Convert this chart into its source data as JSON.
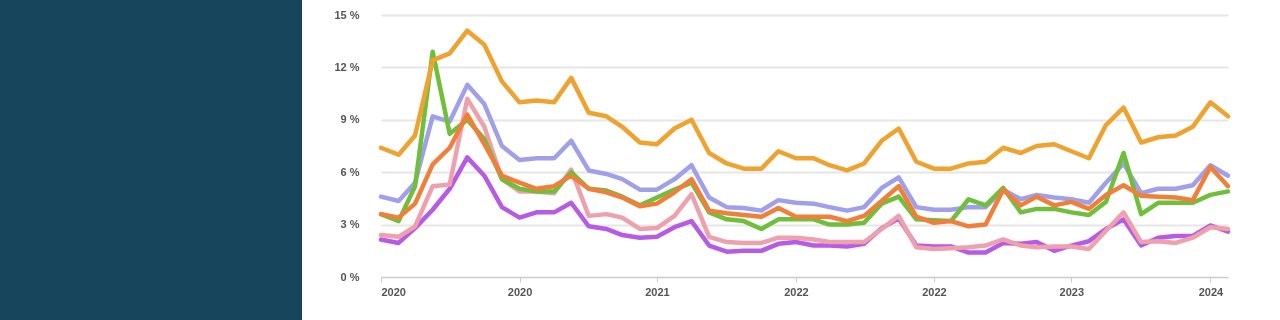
{
  "chart_data": {
    "type": "line",
    "x": [
      "2020-01",
      "2020-02",
      "2020-03",
      "2020-04",
      "2020-05",
      "2020-06",
      "2020-07",
      "2020-08",
      "2020-09",
      "2020-10",
      "2020-11",
      "2020-12",
      "2021-01",
      "2021-02",
      "2021-03",
      "2021-04",
      "2021-05",
      "2021-06",
      "2021-07",
      "2021-08",
      "2021-09",
      "2021-10",
      "2021-11",
      "2021-12",
      "2022-01",
      "2022-02",
      "2022-03",
      "2022-04",
      "2022-05",
      "2022-06",
      "2022-07",
      "2022-08",
      "2022-09",
      "2022-10",
      "2022-11",
      "2022-12",
      "2023-01",
      "2023-02",
      "2023-03",
      "2023-04",
      "2023-05",
      "2023-06",
      "2023-07",
      "2023-08",
      "2023-09",
      "2023-10",
      "2023-11",
      "2023-12",
      "2024-01",
      "2024-02"
    ],
    "series": [
      {
        "color": "#b65be6",
        "values": [
          2.15,
          1.95,
          2.8,
          3.85,
          5.05,
          6.85,
          5.8,
          4.0,
          3.4,
          3.7,
          3.7,
          4.25,
          2.9,
          2.75,
          2.4,
          2.25,
          2.3,
          2.85,
          3.2,
          1.8,
          1.45,
          1.5,
          1.5,
          1.9,
          2.0,
          1.8,
          1.8,
          1.75,
          1.9,
          2.8,
          3.35,
          1.8,
          1.75,
          1.75,
          1.4,
          1.4,
          1.95,
          1.9,
          2.0,
          1.5,
          1.8,
          2.05,
          2.75,
          3.3,
          1.8,
          2.25,
          2.35,
          2.35,
          2.95,
          2.6
        ]
      },
      {
        "color": "#efa0ad",
        "values": [
          2.4,
          2.3,
          2.9,
          5.2,
          5.3,
          10.2,
          8.6,
          5.6,
          4.9,
          4.9,
          4.8,
          6.15,
          3.5,
          3.6,
          3.4,
          2.75,
          2.8,
          3.5,
          4.75,
          2.3,
          2.0,
          1.95,
          1.95,
          2.25,
          2.25,
          2.15,
          2.0,
          2.0,
          2.0,
          2.75,
          3.5,
          1.7,
          1.6,
          1.65,
          1.7,
          1.8,
          2.15,
          1.8,
          1.7,
          1.75,
          1.75,
          1.6,
          2.65,
          3.7,
          2.0,
          2.05,
          1.95,
          2.25,
          2.85,
          2.75
        ]
      },
      {
        "color": "#a0a0ea",
        "values": [
          4.6,
          4.35,
          5.4,
          9.2,
          8.9,
          11.0,
          9.9,
          7.5,
          6.7,
          6.8,
          6.8,
          7.8,
          6.1,
          5.9,
          5.6,
          5.0,
          5.0,
          5.6,
          6.4,
          4.55,
          4.0,
          3.95,
          3.8,
          4.4,
          4.25,
          4.2,
          4.0,
          3.8,
          4.0,
          5.1,
          5.7,
          4.0,
          3.85,
          3.85,
          4.0,
          4.0,
          5.0,
          4.45,
          4.7,
          4.55,
          4.45,
          4.25,
          5.4,
          6.5,
          4.8,
          5.05,
          5.05,
          5.25,
          6.4,
          5.8
        ]
      },
      {
        "color": "#6fbf3c",
        "values": [
          3.6,
          3.2,
          5.2,
          12.9,
          8.2,
          9.0,
          7.9,
          5.6,
          5.05,
          4.9,
          4.9,
          6.0,
          5.05,
          4.95,
          4.6,
          4.1,
          4.55,
          5.0,
          5.4,
          3.7,
          3.3,
          3.2,
          2.75,
          3.3,
          3.3,
          3.3,
          3.0,
          3.0,
          3.1,
          4.2,
          4.6,
          3.3,
          3.25,
          3.2,
          4.45,
          4.1,
          5.1,
          3.7,
          3.9,
          3.9,
          3.7,
          3.55,
          4.3,
          7.1,
          3.6,
          4.25,
          4.25,
          4.25,
          4.7,
          4.9
        ]
      },
      {
        "color": "#f07f3a",
        "values": [
          3.6,
          3.4,
          4.2,
          6.45,
          7.4,
          9.3,
          7.6,
          5.8,
          5.4,
          5.05,
          5.2,
          5.8,
          5.05,
          4.85,
          4.55,
          4.05,
          4.2,
          4.85,
          5.6,
          3.8,
          3.65,
          3.55,
          3.45,
          3.95,
          3.45,
          3.45,
          3.45,
          3.2,
          3.5,
          4.35,
          5.2,
          3.45,
          3.1,
          3.2,
          2.9,
          3.0,
          5.0,
          4.1,
          4.6,
          4.1,
          4.3,
          3.9,
          4.7,
          5.25,
          4.65,
          4.6,
          4.55,
          4.4,
          6.3,
          5.2
        ]
      },
      {
        "color": "#f0a22e",
        "values": [
          7.4,
          7.0,
          8.1,
          12.4,
          12.8,
          14.1,
          13.3,
          11.2,
          10.0,
          10.1,
          10.0,
          11.4,
          9.4,
          9.2,
          8.6,
          7.7,
          7.6,
          8.5,
          9.0,
          7.1,
          6.5,
          6.2,
          6.2,
          7.2,
          6.8,
          6.8,
          6.4,
          6.1,
          6.5,
          7.8,
          8.5,
          6.6,
          6.2,
          6.2,
          6.5,
          6.6,
          7.4,
          7.1,
          7.5,
          7.6,
          7.2,
          6.8,
          8.7,
          9.7,
          7.7,
          8.0,
          8.1,
          8.6,
          10.0,
          9.2
        ]
      }
    ],
    "xlim": [
      "2020-01",
      "2024-02"
    ],
    "xticks": [
      {
        "value": "2020-01",
        "label": "2020"
      },
      {
        "value": "2020-09",
        "label": "2020"
      },
      {
        "value": "2021-05",
        "label": "2021"
      },
      {
        "value": "2022-01",
        "label": "2022"
      },
      {
        "value": "2022-09",
        "label": "2022"
      },
      {
        "value": "2023-05",
        "label": "2023"
      },
      {
        "value": "2024-01",
        "label": "2024"
      }
    ],
    "ylim": [
      0,
      15
    ],
    "yticks": [
      {
        "value": 0,
        "label": "0 %"
      },
      {
        "value": 3,
        "label": "3 %"
      },
      {
        "value": 6,
        "label": "6 %"
      },
      {
        "value": 9,
        "label": "9 %"
      },
      {
        "value": 12,
        "label": "12 %"
      },
      {
        "value": 15,
        "label": "15 %"
      }
    ],
    "grid": "y",
    "marker": "none",
    "line_style": "solid"
  }
}
